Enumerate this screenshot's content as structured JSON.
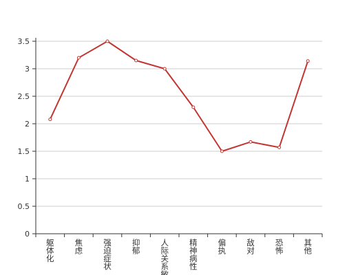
{
  "chart_data": {
    "type": "line",
    "categories": [
      "躯体化",
      "焦虑",
      "强迫症状",
      "抑郁",
      "人际关系敏感",
      "精神病性",
      "偏执",
      "敌对",
      "恐怖",
      "其他"
    ],
    "values": [
      2.08,
      3.2,
      3.5,
      3.15,
      3.0,
      2.3,
      1.5,
      1.67,
      1.57,
      3.14
    ],
    "color": "#c23531",
    "ylim": [
      0,
      3.5
    ],
    "yticks": [
      0,
      0.5,
      1,
      1.5,
      2,
      2.5,
      3,
      3.5
    ],
    "grid": true
  }
}
